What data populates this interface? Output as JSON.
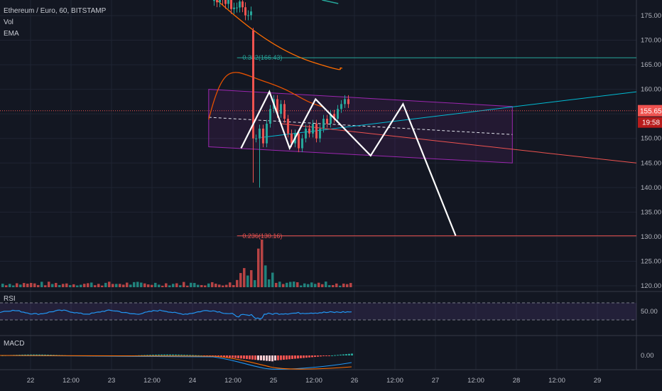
{
  "header": {
    "title": "Ethereum / Euro, 60, BITSTAMP",
    "indicators": [
      "Vol",
      "EMA"
    ]
  },
  "price_badges": {
    "last_price": "155.65",
    "countdown": "19:58"
  },
  "panes": {
    "rsi_label": "RSI",
    "macd_label": "MACD"
  },
  "colors": {
    "background": "#131722",
    "grid": "#1f2433",
    "up": "#26a69a",
    "down": "#ef5350",
    "channel": "#9c27b0",
    "ema_fast": "#ff6d00",
    "ema_slow": "#e65100",
    "projection": "#ffffff",
    "rsi": "#2196f3",
    "fib_236": "#ef5350",
    "fib_382": "#26a69a",
    "trend": "#00bcd4"
  },
  "chart_data": {
    "type": "candlestick",
    "title": "Ethereum / Euro, 60, BITSTAMP",
    "ylim": [
      118,
      180
    ],
    "y_ticks": [
      120,
      125,
      130,
      135,
      140,
      145,
      150,
      155,
      160,
      165,
      170,
      175
    ],
    "x_ticks": [
      "22",
      "12:00",
      "23",
      "12:00",
      "24",
      "12:00",
      "25",
      "12:00",
      "26",
      "12:00",
      "27",
      "12:00",
      "28",
      "12:00",
      "29"
    ],
    "fib_levels": [
      {
        "label": "0.382(166.43)",
        "value": 166.43
      },
      {
        "label": "0.236(130.16)",
        "value": 130.16
      }
    ],
    "last_price": 155.65,
    "projection_path": [
      {
        "t": 24.6,
        "price": 148
      },
      {
        "t": 24.95,
        "price": 159.5
      },
      {
        "t": 25.2,
        "price": 148
      },
      {
        "t": 25.52,
        "price": 158
      },
      {
        "t": 26.2,
        "price": 146.5
      },
      {
        "t": 26.6,
        "price": 157
      },
      {
        "t": 27.25,
        "price": 130.2
      }
    ],
    "rsi_levels": [
      70,
      50,
      30
    ],
    "rsi_tick": "50.00",
    "macd_tick": "0.00"
  }
}
